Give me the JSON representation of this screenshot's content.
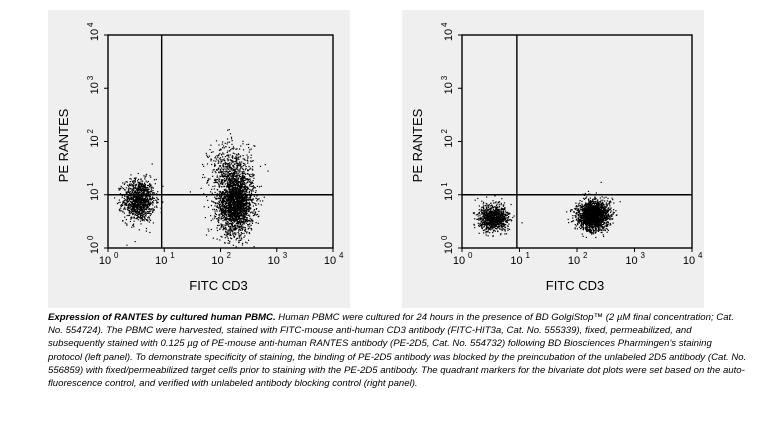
{
  "chart_data": [
    {
      "type": "scatter",
      "xlabel": "FITC CD3",
      "ylabel": "PE RANTES",
      "xscale": "log",
      "yscale": "log",
      "xlim": [
        1,
        10000
      ],
      "ylim": [
        1,
        10000
      ],
      "x_ticks": [
        "10",
        "10",
        "10",
        "10",
        "10"
      ],
      "x_tick_exps": [
        "0",
        "1",
        "2",
        "3",
        "4"
      ],
      "y_ticks": [
        "10",
        "10",
        "10",
        "10",
        "10"
      ],
      "y_tick_exps": [
        "0",
        "1",
        "2",
        "3",
        "4"
      ],
      "quadrant_x": 9,
      "quadrant_y": 10,
      "clusters": [
        {
          "x": 3.5,
          "y": 8,
          "sx": 0.14,
          "sy": 0.2,
          "n": 1100
        },
        {
          "x": 180,
          "y": 7,
          "sx": 0.16,
          "sy": 0.28,
          "n": 2200
        },
        {
          "x": 150,
          "y": 30,
          "sx": 0.2,
          "sy": 0.28,
          "n": 500
        }
      ]
    },
    {
      "type": "scatter",
      "xlabel": "FITC CD3",
      "ylabel": "PE RANTES",
      "xscale": "log",
      "yscale": "log",
      "xlim": [
        1,
        10000
      ],
      "ylim": [
        1,
        10000
      ],
      "x_ticks": [
        "10",
        "10",
        "10",
        "10",
        "10"
      ],
      "x_tick_exps": [
        "0",
        "1",
        "2",
        "3",
        "4"
      ],
      "y_ticks": [
        "10",
        "10",
        "10",
        "10",
        "10"
      ],
      "y_tick_exps": [
        "0",
        "1",
        "2",
        "3",
        "4"
      ],
      "quadrant_x": 9,
      "quadrant_y": 10,
      "clusters": [
        {
          "x": 3.5,
          "y": 3.8,
          "sx": 0.13,
          "sy": 0.12,
          "n": 1000
        },
        {
          "x": 190,
          "y": 4.2,
          "sx": 0.14,
          "sy": 0.14,
          "n": 1900
        }
      ]
    }
  ],
  "caption": {
    "title": "Expression of RANTES by cultured human PBMC.",
    "body": " Human PBMC were cultured for 24 hours in the presence of BD GolgiStop™ (2 µM final concentration; Cat. No. 554724). The PBMC were harvested, stained with FITC-mouse anti-human CD3 antibody (FITC-HIT3a, Cat. No. 555339), fixed, permeabilized, and subsequently stained with 0.125 µg of PE-mouse anti-human RANTES antibody (PE-2D5, Cat. No. 554732) following BD Biosciences Pharmingen's staining protocol (left panel). To demonstrate specificity of staining, the binding of PE-2D5 antibody was blocked by the preincubation of the unlabeled 2D5 antibody (Cat. No. 556859) with fixed/permeabilized target cells prior to staining with the PE-2D5 antibody. The quadrant markers for the bivariate dot plots were set based on the auto-fluorescence control, and verified with unlabeled antibody blocking control (right panel)."
  }
}
